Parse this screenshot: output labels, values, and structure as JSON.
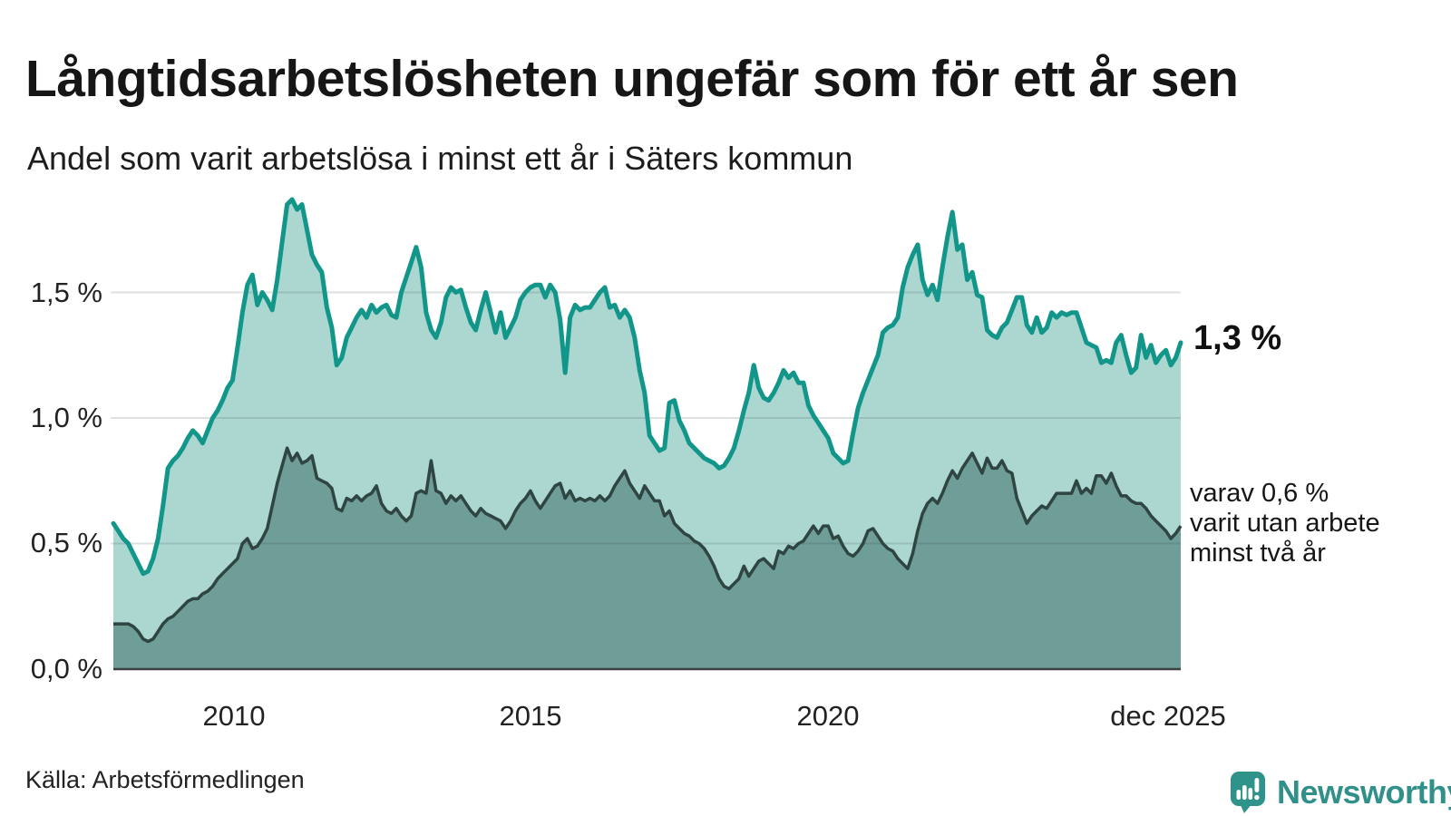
{
  "header": {
    "title": "Långtidsarbetslösheten ungefär som för ett år sen",
    "subtitle": "Andel som varit arbetslösa i minst ett år i Säters kommun"
  },
  "chart": {
    "y_axis": {
      "ticks": [
        "1,5 %",
        "1,0 %",
        "0,5 %",
        "0,0 %"
      ]
    },
    "x_axis": {
      "ticks": [
        "2010",
        "2015",
        "2020",
        "dec 2025"
      ]
    },
    "end_label_total": "1,3 %",
    "annotation": {
      "line1": "varav 0,6 %",
      "line2": "varit utan arbete",
      "line3": "minst två år"
    }
  },
  "footer": {
    "source": "Källa: Arbetsförmedlingen",
    "brand": "Newsworthy"
  },
  "colors": {
    "accent_teal_line": "#13968a",
    "light_area_fill": "#abd7d0",
    "dark_area_fill": "#6f9d98",
    "dark_line": "#2e4542",
    "gridline": "#e2e4e8",
    "baseline": "#3a3f40",
    "brand_teal": "#31918a",
    "logo_bubble": "#2f938b",
    "text": "#1a1a1a"
  },
  "chart_data": {
    "type": "area",
    "title": "Långtidsarbetslösheten ungefär som för ett år sen",
    "subtitle": "Andel som varit arbetslösa i minst ett år i Säters kommun",
    "x": {
      "start": "2008-01",
      "end": "2025-12",
      "interval": "monthly",
      "tick_labels": [
        "2010",
        "2015",
        "2020",
        "dec 2025"
      ]
    },
    "y": {
      "unit": "%",
      "ylim": [
        0,
        2.0
      ],
      "ticks": [
        0.0,
        0.5,
        1.0,
        1.5
      ],
      "tick_labels": [
        "0,0 %",
        "0,5 %",
        "1,0 %",
        "1,5 %"
      ]
    },
    "grid": true,
    "legend": "direct-labels-right",
    "series": [
      {
        "name": "Arbetslösa minst ett år",
        "end_label": "1,3 %",
        "last_value": 1.3,
        "values": [
          0.58,
          0.55,
          0.52,
          0.5,
          0.46,
          0.42,
          0.38,
          0.39,
          0.44,
          0.52,
          0.65,
          0.8,
          0.83,
          0.85,
          0.88,
          0.92,
          0.95,
          0.93,
          0.9,
          0.95,
          1.0,
          1.03,
          1.07,
          1.12,
          1.15,
          1.28,
          1.42,
          1.53,
          1.57,
          1.45,
          1.5,
          1.47,
          1.43,
          1.55,
          1.7,
          1.85,
          1.87,
          1.83,
          1.85,
          1.75,
          1.65,
          1.61,
          1.58,
          1.44,
          1.36,
          1.21,
          1.24,
          1.32,
          1.36,
          1.4,
          1.43,
          1.4,
          1.45,
          1.42,
          1.44,
          1.45,
          1.41,
          1.4,
          1.5,
          1.56,
          1.62,
          1.68,
          1.6,
          1.42,
          1.35,
          1.32,
          1.38,
          1.48,
          1.52,
          1.5,
          1.51,
          1.44,
          1.38,
          1.35,
          1.43,
          1.5,
          1.42,
          1.34,
          1.42,
          1.32,
          1.36,
          1.4,
          1.47,
          1.5,
          1.52,
          1.53,
          1.53,
          1.48,
          1.53,
          1.5,
          1.39,
          1.18,
          1.4,
          1.45,
          1.43,
          1.44,
          1.44,
          1.47,
          1.5,
          1.52,
          1.44,
          1.45,
          1.4,
          1.43,
          1.4,
          1.32,
          1.19,
          1.1,
          0.93,
          0.9,
          0.87,
          0.88,
          1.06,
          1.07,
          0.99,
          0.95,
          0.9,
          0.88,
          0.86,
          0.84,
          0.83,
          0.82,
          0.8,
          0.81,
          0.84,
          0.88,
          0.95,
          1.03,
          1.1,
          1.21,
          1.12,
          1.08,
          1.07,
          1.1,
          1.14,
          1.19,
          1.16,
          1.18,
          1.14,
          1.14,
          1.05,
          1.01,
          0.98,
          0.95,
          0.92,
          0.86,
          0.84,
          0.82,
          0.83,
          0.94,
          1.04,
          1.1,
          1.15,
          1.2,
          1.25,
          1.34,
          1.36,
          1.37,
          1.4,
          1.52,
          1.6,
          1.65,
          1.69,
          1.55,
          1.49,
          1.53,
          1.47,
          1.6,
          1.72,
          1.82,
          1.67,
          1.69,
          1.55,
          1.58,
          1.49,
          1.48,
          1.35,
          1.33,
          1.32,
          1.36,
          1.38,
          1.43,
          1.48,
          1.48,
          1.37,
          1.34,
          1.4,
          1.34,
          1.36,
          1.42,
          1.4,
          1.42,
          1.41,
          1.42,
          1.42,
          1.36,
          1.3,
          1.29,
          1.28,
          1.22,
          1.23,
          1.22,
          1.3,
          1.33,
          1.25,
          1.18,
          1.2,
          1.33,
          1.24,
          1.29,
          1.22,
          1.25,
          1.27,
          1.21,
          1.24,
          1.3
        ]
      },
      {
        "name": "Varav utan arbete minst två år",
        "end_label": "varav 0,6 % varit utan arbete minst två år",
        "last_value": 0.6,
        "values": [
          0.18,
          0.18,
          0.18,
          0.18,
          0.17,
          0.15,
          0.12,
          0.11,
          0.12,
          0.15,
          0.18,
          0.2,
          0.21,
          0.23,
          0.25,
          0.27,
          0.28,
          0.28,
          0.3,
          0.31,
          0.33,
          0.36,
          0.38,
          0.4,
          0.42,
          0.44,
          0.5,
          0.52,
          0.48,
          0.49,
          0.52,
          0.56,
          0.65,
          0.74,
          0.81,
          0.88,
          0.83,
          0.86,
          0.82,
          0.83,
          0.85,
          0.76,
          0.75,
          0.74,
          0.72,
          0.64,
          0.63,
          0.68,
          0.67,
          0.69,
          0.67,
          0.69,
          0.7,
          0.73,
          0.66,
          0.63,
          0.62,
          0.64,
          0.61,
          0.59,
          0.61,
          0.7,
          0.71,
          0.7,
          0.83,
          0.71,
          0.7,
          0.66,
          0.69,
          0.67,
          0.69,
          0.66,
          0.63,
          0.61,
          0.64,
          0.62,
          0.61,
          0.6,
          0.59,
          0.56,
          0.59,
          0.63,
          0.66,
          0.68,
          0.71,
          0.67,
          0.64,
          0.67,
          0.7,
          0.73,
          0.74,
          0.68,
          0.71,
          0.67,
          0.68,
          0.67,
          0.68,
          0.67,
          0.69,
          0.67,
          0.69,
          0.73,
          0.76,
          0.79,
          0.74,
          0.71,
          0.68,
          0.73,
          0.7,
          0.67,
          0.67,
          0.61,
          0.63,
          0.58,
          0.56,
          0.54,
          0.53,
          0.51,
          0.5,
          0.48,
          0.45,
          0.41,
          0.36,
          0.33,
          0.32,
          0.34,
          0.36,
          0.41,
          0.37,
          0.4,
          0.43,
          0.44,
          0.42,
          0.4,
          0.47,
          0.46,
          0.49,
          0.48,
          0.5,
          0.51,
          0.54,
          0.57,
          0.54,
          0.57,
          0.57,
          0.52,
          0.53,
          0.49,
          0.46,
          0.45,
          0.47,
          0.5,
          0.55,
          0.56,
          0.53,
          0.5,
          0.48,
          0.47,
          0.44,
          0.42,
          0.4,
          0.46,
          0.55,
          0.62,
          0.66,
          0.68,
          0.66,
          0.7,
          0.75,
          0.79,
          0.76,
          0.8,
          0.83,
          0.86,
          0.82,
          0.78,
          0.84,
          0.8,
          0.8,
          0.83,
          0.79,
          0.78,
          0.68,
          0.63,
          0.58,
          0.61,
          0.63,
          0.65,
          0.64,
          0.67,
          0.7,
          0.7,
          0.7,
          0.7,
          0.75,
          0.7,
          0.72,
          0.7,
          0.77,
          0.77,
          0.74,
          0.78,
          0.73,
          0.69,
          0.69,
          0.67,
          0.66,
          0.66,
          0.64,
          0.61,
          0.59,
          0.57,
          0.55,
          0.52,
          0.54,
          0.57
        ]
      }
    ]
  }
}
